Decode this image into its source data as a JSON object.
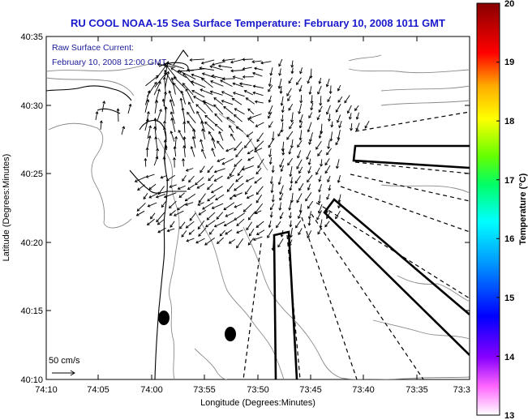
{
  "title": "RU COOL  NOAA-15  Sea Surface Temperature:  February 10, 2008 1011 GMT",
  "overlay": {
    "line1": "Raw Surface Current:",
    "line2": "February 10, 2008 12:00 GMT"
  },
  "scale": {
    "label": "50 cm/s"
  },
  "axes": {
    "xlabel": "Longitude (Degrees:Minutes)",
    "ylabel": "Latitude (Degrees:Minutes)",
    "x_ticks": [
      "74:10",
      "74:05",
      "74:00",
      "73:55",
      "73:50",
      "73:45",
      "73:40",
      "73:35",
      "73:3"
    ],
    "y_ticks": [
      "40:35",
      "40:30",
      "40:25",
      "40:20",
      "40:15",
      "40:10"
    ]
  },
  "colorbar": {
    "label": "Temperature (°C)",
    "ticks": [
      "20",
      "19",
      "18",
      "17",
      "16",
      "15",
      "14",
      "13"
    ],
    "min": 13,
    "max": 20
  },
  "colors": {
    "title": "#1a1acc",
    "overlay_text": "#1a1a9a",
    "land_outline": "#000000",
    "bathymetry": "#888888"
  }
}
